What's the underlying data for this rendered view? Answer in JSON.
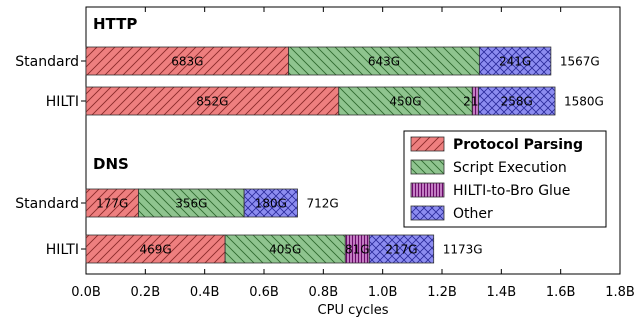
{
  "chart_data": {
    "type": "bar",
    "orientation": "horizontal",
    "stacked": true,
    "xlabel": "CPU cycles",
    "xlim": [
      0,
      1.8
    ],
    "x_unit": "billions of CPU cycles",
    "x_ticks": [
      "0.0B",
      "0.2B",
      "0.4B",
      "0.6B",
      "0.8B",
      "1.0B",
      "1.2B",
      "1.4B",
      "1.6B",
      "1.8B"
    ],
    "grid": false,
    "legend_position": "right",
    "series": [
      {
        "name": "Protocol Parsing",
        "color": "#ee7f7f",
        "hatch": "diagonal-forward",
        "bold": true
      },
      {
        "name": "Script Execution",
        "color": "#8fc48f",
        "hatch": "diagonal-back",
        "bold": false
      },
      {
        "name": "HILTI-to-Bro Glue",
        "color": "#8a0f8a",
        "hatch": "vertical-dense",
        "bold": false
      },
      {
        "name": "Other",
        "color": "#8888ee",
        "hatch": "cross",
        "bold": false
      }
    ],
    "groups": [
      {
        "title": "HTTP",
        "bars": [
          {
            "label": "Standard",
            "segments": [
              {
                "series": "Protocol Parsing",
                "value": 683,
                "text": "683G"
              },
              {
                "series": "Script Execution",
                "value": 643,
                "text": "643G"
              },
              {
                "series": "HILTI-to-Bro Glue",
                "value": 0,
                "text": ""
              },
              {
                "series": "Other",
                "value": 241,
                "text": "241G"
              }
            ],
            "total": "1567G"
          },
          {
            "label": "HILTI",
            "segments": [
              {
                "series": "Protocol Parsing",
                "value": 852,
                "text": "852G"
              },
              {
                "series": "Script Execution",
                "value": 450,
                "text": "450G"
              },
              {
                "series": "HILTI-to-Bro Glue",
                "value": 21,
                "text": "21G"
              },
              {
                "series": "Other",
                "value": 258,
                "text": "258G"
              }
            ],
            "total": "1580G"
          }
        ]
      },
      {
        "title": "DNS",
        "bars": [
          {
            "label": "Standard",
            "segments": [
              {
                "series": "Protocol Parsing",
                "value": 177,
                "text": "177G"
              },
              {
                "series": "Script Execution",
                "value": 356,
                "text": "356G"
              },
              {
                "series": "HILTI-to-Bro Glue",
                "value": 0,
                "text": ""
              },
              {
                "series": "Other",
                "value": 180,
                "text": "180G"
              }
            ],
            "total": "712G"
          },
          {
            "label": "HILTI",
            "segments": [
              {
                "series": "Protocol Parsing",
                "value": 469,
                "text": "469G"
              },
              {
                "series": "Script Execution",
                "value": 405,
                "text": "405G"
              },
              {
                "series": "HILTI-to-Bro Glue",
                "value": 81,
                "text": "81G"
              },
              {
                "series": "Other",
                "value": 217,
                "text": "217G"
              }
            ],
            "total": "1173G"
          }
        ]
      }
    ]
  }
}
